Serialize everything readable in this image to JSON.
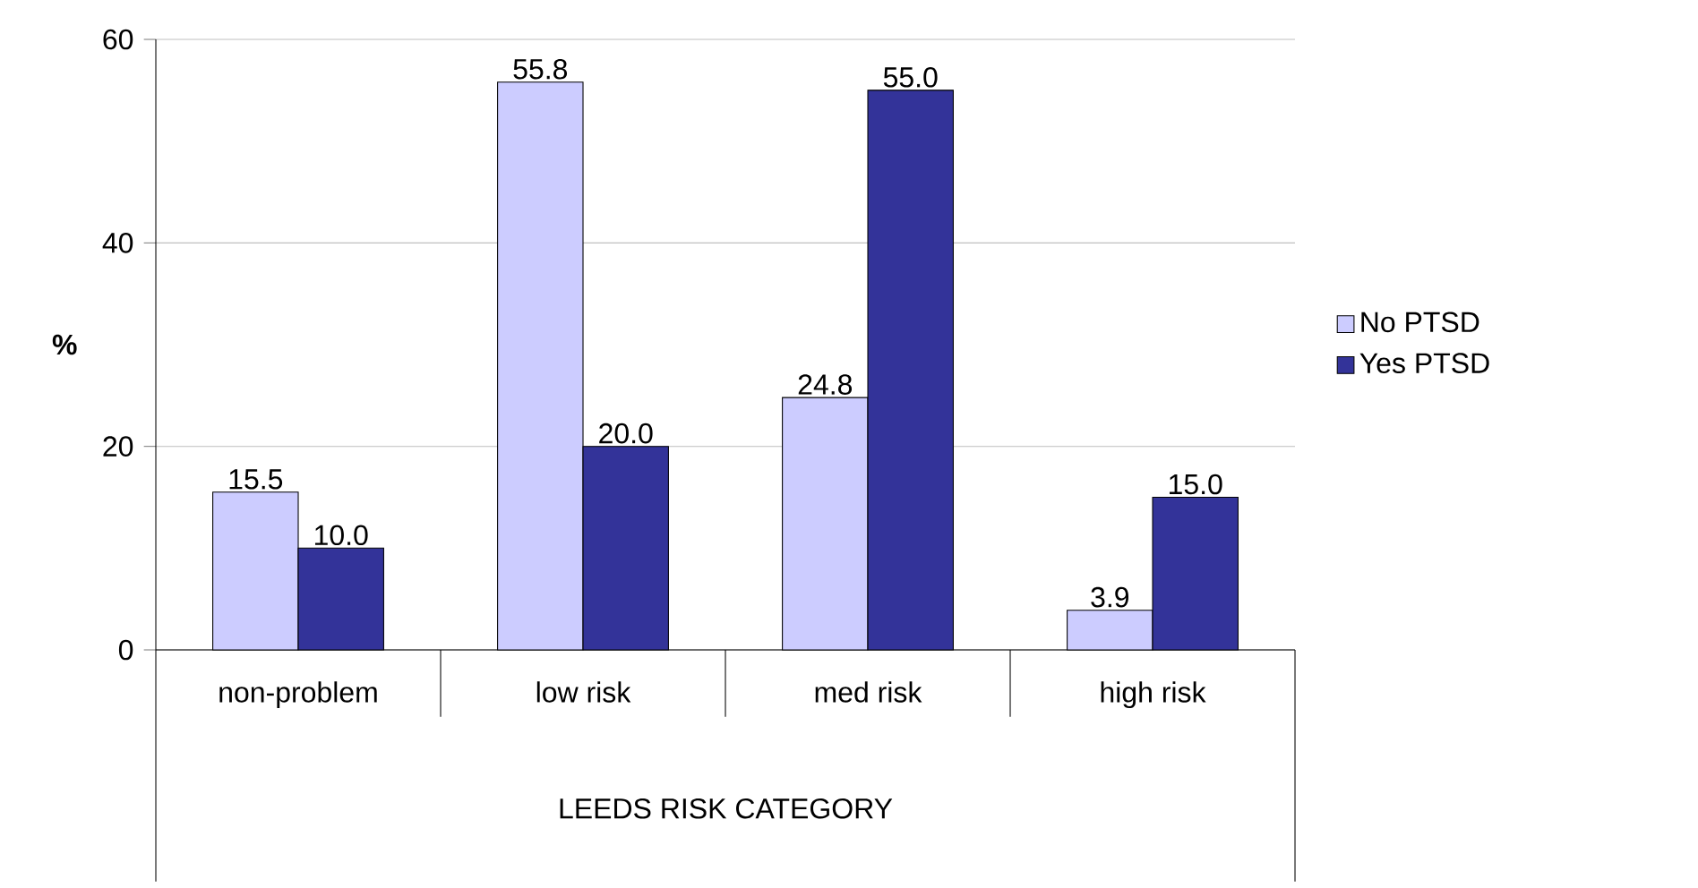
{
  "chart_data": {
    "type": "bar",
    "xlabel": "LEEDS RISK CATEGORY",
    "ylabel": "%",
    "categories": [
      "non-problem",
      "low risk",
      "med risk",
      "high risk"
    ],
    "series": [
      {
        "name": "No PTSD",
        "color": "#ccccff",
        "values": [
          15.5,
          55.8,
          24.8,
          3.9
        ],
        "value_labels": [
          "15.5",
          "55.8",
          "24.8",
          "3.9"
        ]
      },
      {
        "name": "Yes PTSD",
        "color": "#333399",
        "values": [
          10.0,
          20.0,
          55.0,
          15.0
        ],
        "value_labels": [
          "10.0",
          "20.0",
          "55.0",
          "15.0"
        ]
      }
    ],
    "ylim": [
      0,
      60
    ],
    "yticks": [
      0,
      20,
      40,
      60
    ],
    "grid": "y",
    "legend": "right"
  }
}
